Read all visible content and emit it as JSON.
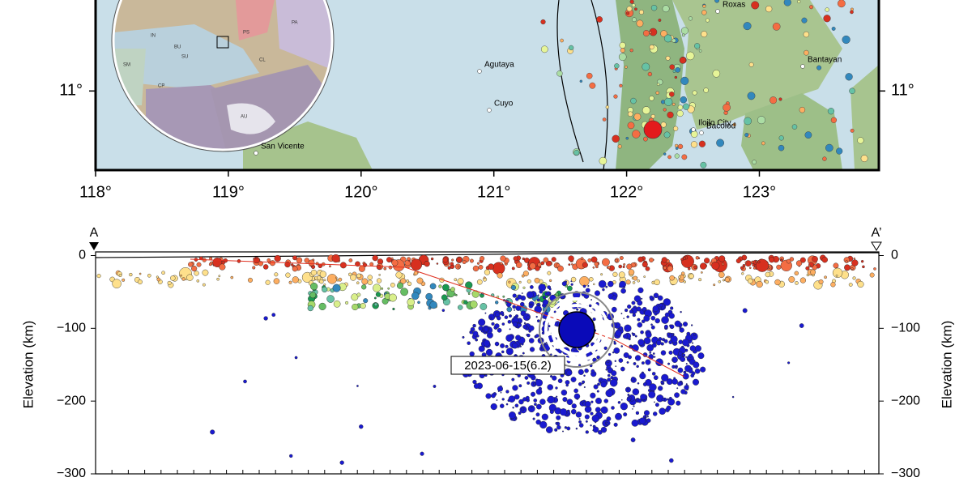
{
  "map": {
    "xlim": [
      118,
      123.9
    ],
    "ylim": [
      10.4,
      11.69
    ],
    "xticks": [
      {
        "value": 118,
        "label": "118°"
      },
      {
        "value": 119,
        "label": "119°"
      },
      {
        "value": 120,
        "label": "120°"
      },
      {
        "value": 121,
        "label": "121°"
      },
      {
        "value": 122,
        "label": "122°"
      },
      {
        "value": 123,
        "label": "123°"
      }
    ],
    "yticks": [
      {
        "value": 11,
        "label": "11°"
      }
    ],
    "places": [
      "Roxas",
      "Agutaya",
      "Cuyo",
      "Bantayan",
      "Iloilo City",
      "Bacolod",
      "San Vicente"
    ],
    "inset_labels": [
      "PS",
      "PA",
      "IN",
      "SU",
      "CL",
      "AU",
      "SM",
      "CP",
      "BU"
    ]
  },
  "section": {
    "start_label": "A",
    "end_label": "A’",
    "ylabel": "Elevation (km)",
    "ylim": [
      -300,
      5
    ],
    "yticks": [
      0,
      {
        "value": -100,
        "label": "−100"
      },
      {
        "value": -200,
        "label": "−200"
      },
      {
        "value": -300,
        "label": "−300"
      }
    ],
    "annotation": "2023-06-15(6.2)"
  }
}
